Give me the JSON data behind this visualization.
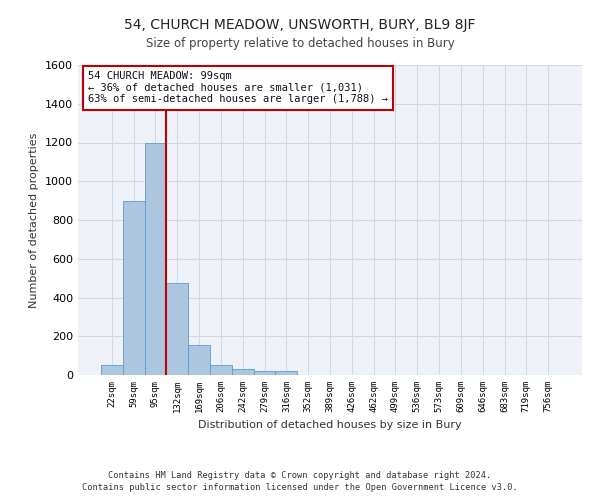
{
  "title": "54, CHURCH MEADOW, UNSWORTH, BURY, BL9 8JF",
  "subtitle": "Size of property relative to detached houses in Bury",
  "xlabel": "Distribution of detached houses by size in Bury",
  "ylabel": "Number of detached properties",
  "footer_line1": "Contains HM Land Registry data © Crown copyright and database right 2024.",
  "footer_line2": "Contains public sector information licensed under the Open Government Licence v3.0.",
  "annotation_title": "54 CHURCH MEADOW: 99sqm",
  "annotation_line1": "← 36% of detached houses are smaller (1,031)",
  "annotation_line2": "63% of semi-detached houses are larger (1,788) →",
  "property_bin_index": 2,
  "bin_labels": [
    "22sqm",
    "59sqm",
    "95sqm",
    "132sqm",
    "169sqm",
    "206sqm",
    "242sqm",
    "279sqm",
    "316sqm",
    "352sqm",
    "389sqm",
    "426sqm",
    "462sqm",
    "499sqm",
    "536sqm",
    "573sqm",
    "609sqm",
    "646sqm",
    "683sqm",
    "719sqm",
    "756sqm"
  ],
  "bar_heights": [
    50,
    900,
    1200,
    475,
    155,
    50,
    30,
    20,
    20,
    0,
    0,
    0,
    0,
    0,
    0,
    0,
    0,
    0,
    0,
    0,
    0
  ],
  "bar_color": "#adc6e0",
  "bar_edge_color": "#5b9bd5",
  "highlight_color": "#c00000",
  "grid_color": "#d0d8e8",
  "background_color": "#eef2f8",
  "ylim": [
    0,
    1600
  ],
  "yticks": [
    0,
    200,
    400,
    600,
    800,
    1000,
    1200,
    1400,
    1600
  ]
}
